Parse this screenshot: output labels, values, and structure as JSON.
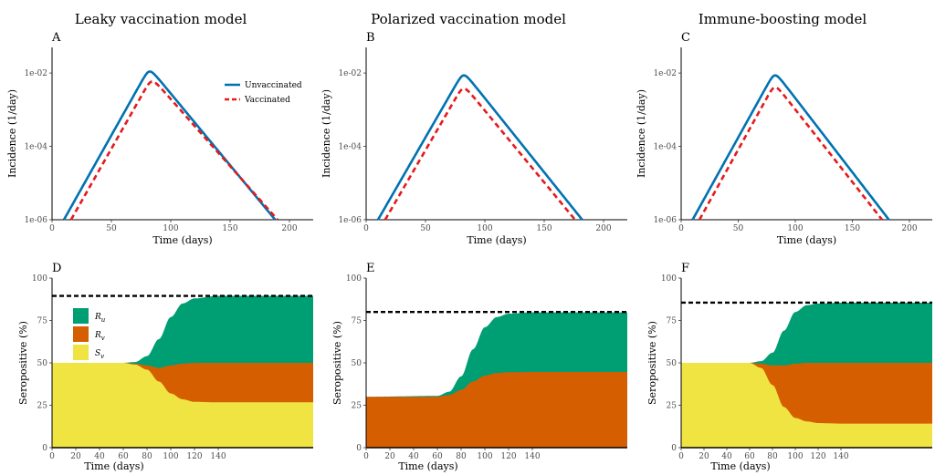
{
  "colors": {
    "unvaccinated": "#0072b2",
    "vaccinated": "#e41a1c",
    "Ru": "#009e73",
    "Rv": "#d55e00",
    "Sv": "#f0e442",
    "threshold": "#000000"
  },
  "titles": [
    "Leaky vaccination model",
    "Polarized vaccination model",
    "Immune-boosting model"
  ],
  "chart_data": [
    {
      "panel": "A",
      "type": "line",
      "scale_y": "log",
      "xlabel": "Time (days)",
      "ylabel": "Incidence (1/day)",
      "xlim": [
        0,
        220
      ],
      "ylim": [
        1e-06,
        0.05
      ],
      "xticks": [
        0,
        50,
        100,
        150,
        200
      ],
      "yticks": [
        "1e-06",
        "1e-04",
        "1e-02"
      ],
      "legend": "top-right",
      "series": [
        {
          "name": "Unvaccinated",
          "style": "solid",
          "x": [
            10,
            82,
            188
          ],
          "y": [
            1e-06,
            0.014,
            1e-06
          ]
        },
        {
          "name": "Vaccinated",
          "style": "dashed",
          "x": [
            16,
            84,
            190
          ],
          "y": [
            1e-06,
            0.0075,
            1e-06
          ]
        }
      ]
    },
    {
      "panel": "B",
      "type": "line",
      "scale_y": "log",
      "xlabel": "Time (days)",
      "ylabel": "Incidence (1/day)",
      "xlim": [
        0,
        220
      ],
      "ylim": [
        1e-06,
        0.05
      ],
      "xticks": [
        0,
        50,
        100,
        150,
        200
      ],
      "yticks": [
        "1e-06",
        "1e-04",
        "1e-02"
      ],
      "series": [
        {
          "style": "solid",
          "x": [
            10,
            82,
            182
          ],
          "y": [
            1e-06,
            0.011,
            1e-06
          ]
        },
        {
          "style": "dashed",
          "x": [
            16,
            82,
            176
          ],
          "y": [
            1e-06,
            0.0048,
            1e-06
          ]
        }
      ]
    },
    {
      "panel": "C",
      "type": "line",
      "scale_y": "log",
      "xlabel": "Time (days)",
      "ylabel": "Incidence (1/day)",
      "xlim": [
        0,
        220
      ],
      "ylim": [
        1e-06,
        0.05
      ],
      "xticks": [
        0,
        50,
        100,
        150,
        200
      ],
      "yticks": [
        "1e-06",
        "1e-04",
        "1e-02"
      ],
      "series": [
        {
          "style": "solid",
          "x": [
            10,
            82,
            182
          ],
          "y": [
            1e-06,
            0.011,
            1e-06
          ]
        },
        {
          "style": "dashed",
          "x": [
            16,
            82,
            176
          ],
          "y": [
            1e-06,
            0.0052,
            1e-06
          ]
        }
      ]
    },
    {
      "panel": "D",
      "type": "area",
      "xlabel": "Time (days)",
      "ylabel": "Seropositive (%)",
      "xlim": [
        0,
        220
      ],
      "ylim": [
        0,
        100
      ],
      "xticks": [
        0,
        20,
        40,
        60,
        80,
        100,
        120,
        140
      ],
      "yticks": [
        0,
        25,
        50,
        75,
        100
      ],
      "legend": "top-left",
      "threshold": 89.5,
      "layers": [
        {
          "name": "Sv",
          "x": [
            0,
            60,
            70,
            80,
            90,
            100,
            110,
            120,
            140,
            220
          ],
          "y": [
            50,
            50,
            49,
            46,
            39,
            32,
            28.5,
            27,
            26.7,
            26.7
          ]
        },
        {
          "name": "Rv",
          "x": [
            0,
            60,
            70,
            80,
            90,
            100,
            110,
            120,
            140,
            220
          ],
          "y": [
            50,
            50,
            49.5,
            48.5,
            47,
            48.5,
            49.5,
            50,
            50,
            50
          ]
        },
        {
          "name": "Ru",
          "x": [
            0,
            60,
            70,
            80,
            90,
            100,
            110,
            120,
            140,
            220
          ],
          "y": [
            50,
            50,
            50.5,
            54,
            64,
            77,
            85,
            88,
            89.5,
            89.5
          ]
        }
      ]
    },
    {
      "panel": "E",
      "type": "area",
      "xlabel": "Time (days)",
      "ylabel": "Seropositive (%)",
      "xlim": [
        0,
        220
      ],
      "ylim": [
        0,
        100
      ],
      "xticks": [
        0,
        20,
        40,
        60,
        80,
        100,
        120,
        140
      ],
      "yticks": [
        0,
        25,
        50,
        75,
        100
      ],
      "threshold": 80,
      "layers": [
        {
          "name": "Rv",
          "x": [
            0,
            60,
            70,
            80,
            90,
            100,
            110,
            120,
            140,
            220
          ],
          "y": [
            30,
            30,
            31,
            34,
            39,
            42.5,
            44,
            44.5,
            44.6,
            44.6
          ]
        },
        {
          "name": "Ru",
          "x": [
            0,
            60,
            70,
            80,
            90,
            100,
            110,
            120,
            140,
            220
          ],
          "y": [
            30,
            30.5,
            33,
            42,
            58,
            71,
            77,
            79,
            79.8,
            79.8
          ]
        }
      ]
    },
    {
      "panel": "F",
      "type": "area",
      "xlabel": "Time (days)",
      "ylabel": "Seropositive (%)",
      "xlim": [
        0,
        220
      ],
      "ylim": [
        0,
        100
      ],
      "xticks": [
        0,
        20,
        40,
        60,
        80,
        100,
        120,
        140
      ],
      "yticks": [
        0,
        25,
        50,
        75,
        100
      ],
      "threshold": 85.5,
      "layers": [
        {
          "name": "Sv",
          "x": [
            0,
            60,
            70,
            80,
            90,
            100,
            110,
            120,
            140,
            220
          ],
          "y": [
            50,
            50,
            47,
            37,
            24,
            17.5,
            15.5,
            14.5,
            14.2,
            14.2
          ]
        },
        {
          "name": "Rv",
          "x": [
            0,
            60,
            70,
            80,
            90,
            100,
            110,
            120,
            140,
            220
          ],
          "y": [
            50,
            50,
            49.5,
            48.5,
            48.5,
            49.5,
            50,
            50,
            50,
            50
          ]
        },
        {
          "name": "Ru",
          "x": [
            0,
            60,
            70,
            80,
            90,
            100,
            110,
            120,
            140,
            220
          ],
          "y": [
            50,
            50,
            51,
            56,
            69,
            80,
            84,
            85,
            85.5,
            85.5
          ]
        }
      ]
    }
  ],
  "legend_incidence": [
    {
      "key": "unvaccinated",
      "label": "Unvaccinated",
      "style": "solid"
    },
    {
      "key": "vaccinated",
      "label": "Vaccinated",
      "style": "dashed"
    }
  ],
  "legend_sero": [
    {
      "key": "Ru",
      "label": "R",
      "sub": "u"
    },
    {
      "key": "Rv",
      "label": "R",
      "sub": "v"
    },
    {
      "key": "Sv",
      "label": "S",
      "sub": "v"
    }
  ]
}
